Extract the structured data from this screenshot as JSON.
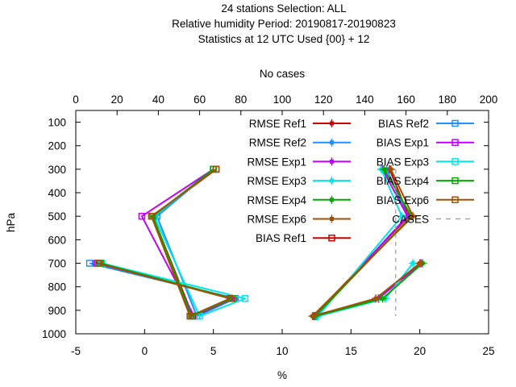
{
  "chart_data": {
    "type": "line",
    "title_lines": [
      "24 stations Selection: ALL",
      "Relative humidity  Period: 20190817-20190823",
      "Statistics at 12 UTC  Used {00} + 12"
    ],
    "xlabel": "%",
    "ylabel": "hPa",
    "x2label": "No cases",
    "xlim": [
      -5,
      25
    ],
    "x2lim": [
      0,
      200
    ],
    "ylim": [
      1000,
      50
    ],
    "y_reversed": true,
    "grid": false,
    "legend_position": "top-right",
    "x_ticks": [
      "-5",
      "0",
      "5",
      "10",
      "15",
      "20",
      "25"
    ],
    "x2_ticks": [
      "0",
      "20",
      "40",
      "60",
      "80",
      "100",
      "120",
      "140",
      "160",
      "180",
      "200"
    ],
    "y_ticks": [
      "100",
      "200",
      "300",
      "400",
      "500",
      "600",
      "700",
      "800",
      "900",
      "1000"
    ],
    "series": [
      {
        "name": "RMSE Ref1",
        "color": "#cc0000",
        "marker": "filled",
        "points": [
          [
            20.0,
            700
          ],
          [
            17.0,
            850
          ],
          [
            12.3,
            925
          ],
          [
            19.2,
            500
          ],
          [
            17.8,
            300
          ]
        ]
      },
      {
        "name": "RMSE Ref2",
        "color": "#1e90ff",
        "marker": "filled",
        "points": [
          [
            20.0,
            700
          ],
          [
            17.0,
            850
          ],
          [
            12.5,
            925
          ],
          [
            19.1,
            500
          ],
          [
            17.6,
            300
          ]
        ]
      },
      {
        "name": "RMSE Exp1",
        "color": "#c000ff",
        "marker": "filled",
        "points": [
          [
            20.1,
            700
          ],
          [
            17.0,
            850
          ],
          [
            12.4,
            925
          ],
          [
            19.1,
            500
          ],
          [
            17.3,
            300
          ]
        ]
      },
      {
        "name": "RMSE Exp3",
        "color": "#00e5e5",
        "marker": "filled",
        "points": [
          [
            19.5,
            700
          ],
          [
            17.5,
            850
          ],
          [
            12.6,
            925
          ],
          [
            18.7,
            500
          ],
          [
            17.2,
            300
          ]
        ]
      },
      {
        "name": "RMSE Exp4",
        "color": "#00aa00",
        "marker": "filled",
        "points": [
          [
            20.2,
            700
          ],
          [
            17.3,
            850
          ],
          [
            12.4,
            925
          ],
          [
            19.4,
            500
          ],
          [
            17.4,
            300
          ]
        ]
      },
      {
        "name": "RMSE Exp6",
        "color": "#a05000",
        "marker": "filled",
        "points": [
          [
            20.0,
            700
          ],
          [
            16.8,
            850
          ],
          [
            12.2,
            925
          ],
          [
            19.5,
            500
          ],
          [
            17.9,
            300
          ]
        ]
      },
      {
        "name": "BIAS Ref1",
        "color": "#cc0000",
        "marker": "open",
        "points": [
          [
            -3.3,
            700
          ],
          [
            6.3,
            850
          ],
          [
            3.5,
            925
          ],
          [
            0.6,
            500
          ],
          [
            5.2,
            300
          ]
        ]
      },
      {
        "name": "BIAS Ref2",
        "color": "#1e90ff",
        "marker": "open",
        "points": [
          [
            -4.0,
            700
          ],
          [
            6.6,
            850
          ],
          [
            3.8,
            925
          ],
          [
            0.9,
            500
          ],
          [
            5.0,
            300
          ]
        ]
      },
      {
        "name": "BIAS Exp1",
        "color": "#c000ff",
        "marker": "open",
        "points": [
          [
            -3.5,
            700
          ],
          [
            6.5,
            850
          ],
          [
            3.6,
            925
          ],
          [
            -0.2,
            500
          ],
          [
            5.0,
            300
          ]
        ]
      },
      {
        "name": "BIAS Exp3",
        "color": "#00e5e5",
        "marker": "open",
        "points": [
          [
            -3.1,
            700
          ],
          [
            7.3,
            850
          ],
          [
            4.0,
            925
          ],
          [
            0.7,
            500
          ],
          [
            5.0,
            300
          ]
        ]
      },
      {
        "name": "BIAS Exp4",
        "color": "#00aa00",
        "marker": "open",
        "points": [
          [
            -3.2,
            700
          ],
          [
            6.4,
            850
          ],
          [
            3.4,
            925
          ],
          [
            0.6,
            500
          ],
          [
            5.0,
            300
          ]
        ]
      },
      {
        "name": "BIAS Exp6",
        "color": "#a05000",
        "marker": "open",
        "points": [
          [
            -3.4,
            700
          ],
          [
            6.2,
            850
          ],
          [
            3.3,
            925
          ],
          [
            0.5,
            500
          ],
          [
            5.2,
            300
          ]
        ]
      },
      {
        "name": "CASES",
        "color": "#999999",
        "marker": "none",
        "dashed": true,
        "axis": "x2",
        "points": [
          [
            155,
            300
          ],
          [
            155,
            400
          ],
          [
            155,
            500
          ],
          [
            155,
            700
          ],
          [
            155,
            850
          ],
          [
            155,
            925
          ]
        ]
      }
    ]
  }
}
